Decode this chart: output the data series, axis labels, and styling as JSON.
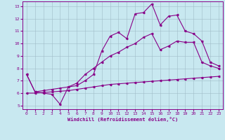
{
  "xlabel": "Windchill (Refroidissement éolien,°C)",
  "bg_color": "#c8e8f0",
  "line_color": "#880088",
  "xmin": 0,
  "xmax": 23,
  "ymin": 5,
  "ymax": 13,
  "line1_x": [
    0,
    1,
    2,
    3,
    4,
    5,
    6,
    7,
    8,
    9,
    10,
    11,
    12,
    13,
    14,
    15,
    16,
    17,
    18,
    19,
    20,
    21,
    22,
    23
  ],
  "line1_y": [
    7.5,
    6.1,
    6.0,
    5.9,
    5.1,
    6.5,
    6.6,
    7.0,
    7.5,
    9.4,
    10.6,
    10.9,
    10.4,
    12.4,
    12.5,
    13.2,
    11.5,
    12.2,
    12.3,
    11.0,
    10.8,
    10.2,
    8.5,
    8.2
  ],
  "line2_x": [
    0,
    1,
    2,
    3,
    4,
    5,
    6,
    7,
    8,
    9,
    10,
    11,
    12,
    13,
    14,
    15,
    16,
    17,
    18,
    19,
    20,
    21,
    22,
    23
  ],
  "line2_y": [
    7.5,
    6.1,
    6.2,
    6.3,
    6.4,
    6.5,
    6.8,
    7.5,
    8.0,
    8.5,
    9.0,
    9.3,
    9.7,
    10.0,
    10.5,
    10.8,
    9.5,
    9.8,
    10.2,
    10.1,
    10.1,
    8.5,
    8.2,
    8.0
  ],
  "line3_x": [
    0,
    1,
    2,
    3,
    4,
    5,
    6,
    7,
    8,
    9,
    10,
    11,
    12,
    13,
    14,
    15,
    16,
    17,
    18,
    19,
    20,
    21,
    22,
    23
  ],
  "line3_y": [
    6.0,
    6.0,
    6.05,
    6.1,
    6.15,
    6.2,
    6.3,
    6.4,
    6.5,
    6.6,
    6.7,
    6.75,
    6.8,
    6.85,
    6.9,
    6.95,
    7.0,
    7.05,
    7.1,
    7.15,
    7.2,
    7.25,
    7.3,
    7.35
  ],
  "yticks": [
    5,
    6,
    7,
    8,
    9,
    10,
    11,
    12,
    13
  ],
  "xticks": [
    0,
    1,
    2,
    3,
    4,
    5,
    6,
    7,
    8,
    9,
    10,
    11,
    12,
    13,
    14,
    15,
    16,
    17,
    18,
    19,
    20,
    21,
    22,
    23
  ]
}
